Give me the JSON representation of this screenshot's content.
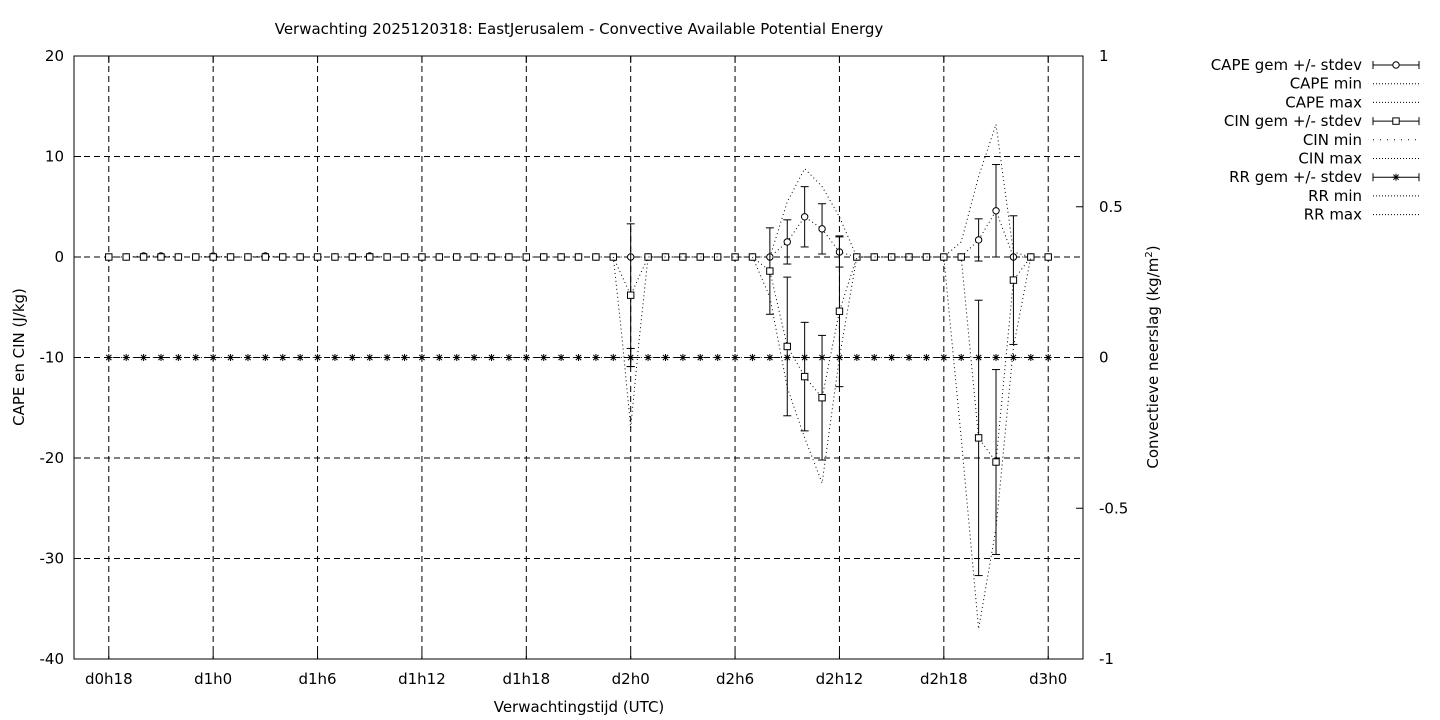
{
  "chart_data": {
    "type": "line",
    "title": "Verwachting 2025120318: EastJerusalem - Convective Available Potential Energy",
    "xlabel": "Verwachtingstijd (UTC)",
    "ylabel": "CAPE en CIN (J/kg)",
    "y2label_main": "Convectieve neerslag (kg/m",
    "y2label_sup": "2",
    "y2label_end": ")",
    "x_range_hours": [
      -2,
      56
    ],
    "x_ticks": [
      {
        "hour": 0,
        "label": "d0h18"
      },
      {
        "hour": 6,
        "label": "d1h0"
      },
      {
        "hour": 12,
        "label": "d1h6"
      },
      {
        "hour": 18,
        "label": "d1h12"
      },
      {
        "hour": 24,
        "label": "d1h18"
      },
      {
        "hour": 30,
        "label": "d2h0"
      },
      {
        "hour": 36,
        "label": "d2h6"
      },
      {
        "hour": 42,
        "label": "d2h12"
      },
      {
        "hour": 48,
        "label": "d2h18"
      },
      {
        "hour": 54,
        "label": "d3h0"
      }
    ],
    "ylim": [
      -40,
      20
    ],
    "y_ticks": [
      "20",
      "10",
      "0",
      "-10",
      "-20",
      "-30",
      "-40"
    ],
    "y2lim": [
      -1,
      1
    ],
    "y2_ticks": [
      "1",
      "0.5",
      "0",
      "-0.5",
      "-1"
    ],
    "grid": true,
    "legend_position": "outside right",
    "legend": [
      {
        "label": "CAPE gem +/- stdev",
        "style": "errorbar",
        "marker": "circle"
      },
      {
        "label": "CAPE min",
        "style": "dotted"
      },
      {
        "label": "CAPE max",
        "style": "dotted"
      },
      {
        "label": "CIN gem +/- stdev",
        "style": "errorbar",
        "marker": "square"
      },
      {
        "label": "CIN min",
        "style": "dotted-sparse"
      },
      {
        "label": "CIN max",
        "style": "dotted"
      },
      {
        "label": "RR gem +/- stdev",
        "style": "errorbar",
        "marker": "star"
      },
      {
        "label": "RR min",
        "style": "dotted"
      },
      {
        "label": "RR max",
        "style": "dotted"
      }
    ],
    "series": [
      {
        "name": "CAPE gem +/- stdev",
        "axis": "y1",
        "marker": "circle",
        "x": [
          0,
          1,
          2,
          3,
          4,
          5,
          6,
          7,
          8,
          9,
          10,
          11,
          12,
          13,
          14,
          15,
          16,
          17,
          18,
          19,
          20,
          21,
          22,
          23,
          24,
          25,
          26,
          27,
          28,
          29,
          30,
          31,
          32,
          33,
          34,
          35,
          36,
          37,
          38,
          39,
          40,
          41,
          42,
          43,
          44,
          45,
          46,
          47,
          48,
          49,
          50,
          51,
          52,
          53,
          54
        ],
        "y": [
          0,
          0,
          0.1,
          0.1,
          0,
          0,
          0.1,
          0,
          0,
          0.1,
          0,
          0,
          0,
          0,
          0,
          0.1,
          0,
          0,
          0,
          0,
          0,
          0,
          0,
          0,
          0,
          0,
          0,
          0,
          0,
          0,
          0,
          0,
          0,
          0,
          0,
          0,
          0,
          0,
          0,
          1.5,
          4.0,
          2.8,
          0.5,
          0,
          0,
          0,
          0,
          0,
          0,
          0,
          1.7,
          4.6,
          0,
          0,
          0
        ],
        "err": [
          0,
          0,
          0,
          0,
          0,
          0,
          0,
          0,
          0,
          0,
          0,
          0,
          0,
          0,
          0,
          0,
          0,
          0,
          0,
          0,
          0,
          0,
          0,
          0,
          0,
          0,
          0,
          0,
          0,
          0,
          0,
          0,
          0,
          0,
          0,
          0,
          0,
          0,
          0,
          2.2,
          3.0,
          2.5,
          1.5,
          0,
          0,
          0,
          0,
          0,
          0,
          0,
          2.1,
          4.6,
          0,
          0,
          0
        ]
      },
      {
        "name": "CAPE max",
        "axis": "y1",
        "x": [
          38,
          39,
          40,
          41,
          42,
          43,
          48,
          49,
          50,
          51,
          52,
          53
        ],
        "y": [
          0,
          5.5,
          8.8,
          7.0,
          4.0,
          0,
          0,
          1.5,
          8.0,
          13.2,
          0.5,
          0
        ]
      },
      {
        "name": "CIN gem +/- stdev",
        "axis": "y1",
        "marker": "square",
        "x": [
          0,
          1,
          2,
          3,
          4,
          5,
          6,
          7,
          8,
          9,
          10,
          11,
          12,
          13,
          14,
          15,
          16,
          17,
          18,
          19,
          20,
          21,
          22,
          23,
          24,
          25,
          26,
          27,
          28,
          29,
          30,
          31,
          32,
          33,
          34,
          35,
          36,
          37,
          38,
          39,
          40,
          41,
          42,
          43,
          44,
          45,
          46,
          47,
          48,
          49,
          50,
          51,
          52,
          53,
          54
        ],
        "y": [
          0,
          0,
          0,
          0,
          0,
          0,
          0,
          0,
          0,
          0,
          0,
          0,
          0,
          0,
          0,
          0,
          0,
          0,
          0,
          0,
          0,
          0,
          0,
          0,
          0,
          0,
          0,
          0,
          0,
          0,
          -3.8,
          0,
          0,
          0,
          0,
          0,
          0,
          0,
          -1.4,
          -8.9,
          -11.9,
          -14.0,
          -5.4,
          0,
          0,
          0,
          0,
          0,
          0,
          0,
          -18.0,
          -20.4,
          -2.3,
          0,
          0
        ],
        "err": [
          0,
          0,
          0,
          0,
          0,
          0,
          0,
          0,
          0,
          0,
          0,
          0,
          0,
          0,
          0,
          0,
          0,
          0,
          0,
          0,
          0,
          0,
          0,
          0,
          0,
          0,
          0,
          0,
          0,
          0,
          7.1,
          0,
          0,
          0,
          0,
          0,
          0,
          0,
          4.3,
          6.9,
          5.4,
          6.2,
          7.5,
          0,
          0,
          0,
          0,
          0,
          0,
          0,
          13.7,
          9.2,
          6.4,
          0,
          0
        ]
      },
      {
        "name": "CIN min",
        "axis": "y1",
        "x": [
          29,
          29.5,
          30,
          30.5,
          31,
          37,
          38,
          39,
          40,
          41,
          42,
          43,
          48,
          49,
          50,
          51,
          52,
          53
        ],
        "y": [
          0,
          -8,
          -17,
          -8,
          0,
          0,
          -4,
          -13,
          -18,
          -22.5,
          -10,
          0,
          0,
          -18,
          -37,
          -27,
          -9,
          0
        ]
      },
      {
        "name": "RR gem +/- stdev",
        "axis": "y2",
        "marker": "star",
        "x": [
          0,
          1,
          2,
          3,
          4,
          5,
          6,
          7,
          8,
          9,
          10,
          11,
          12,
          13,
          14,
          15,
          16,
          17,
          18,
          19,
          20,
          21,
          22,
          23,
          24,
          25,
          26,
          27,
          28,
          29,
          30,
          31,
          32,
          33,
          34,
          35,
          36,
          37,
          38,
          39,
          40,
          41,
          42,
          43,
          44,
          45,
          46,
          47,
          48,
          49,
          50,
          51,
          52,
          53,
          54
        ],
        "y": [
          0,
          0,
          0,
          0,
          0,
          0,
          0,
          0,
          0,
          0,
          0,
          0,
          0,
          0,
          0,
          0,
          0,
          0,
          0,
          0,
          0,
          0,
          0,
          0,
          0,
          0,
          0,
          0,
          0,
          0,
          0,
          0,
          0,
          0,
          0,
          0,
          0,
          0,
          0,
          0,
          0,
          0,
          0,
          0,
          0,
          0,
          0,
          0,
          0,
          0,
          0,
          0,
          0,
          0,
          0
        ],
        "err": [
          0,
          0,
          0,
          0,
          0,
          0,
          0,
          0,
          0,
          0,
          0,
          0,
          0,
          0,
          0,
          0,
          0,
          0,
          0,
          0,
          0,
          0,
          0,
          0,
          0,
          0,
          0,
          0,
          0,
          0,
          0.03,
          0,
          0,
          0,
          0,
          0,
          0,
          0,
          0,
          0,
          0,
          0,
          0,
          0,
          0,
          0,
          0,
          0,
          0,
          0,
          0,
          0,
          0,
          0,
          0
        ]
      }
    ]
  }
}
